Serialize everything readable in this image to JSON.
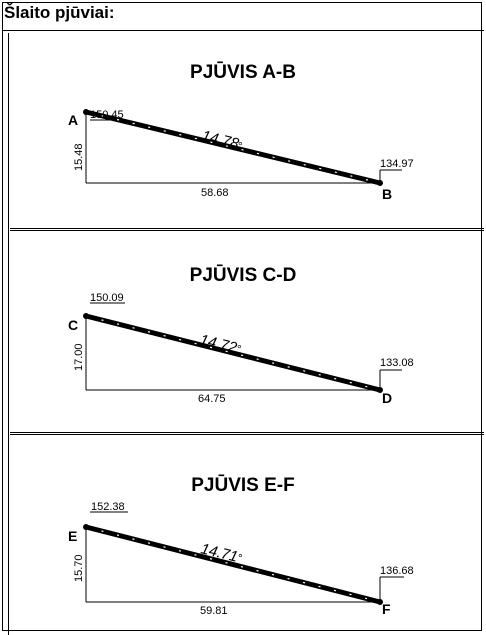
{
  "header": {
    "title": "Šlaito pjūviai:"
  },
  "sections": [
    {
      "title": "PJŪVIS A-B",
      "start_label": "A",
      "end_label": "B",
      "start_elev": "150.45",
      "end_elev": "134.97",
      "height": "15.48",
      "length": "58.68",
      "angle": "14.78"
    },
    {
      "title": "PJŪVIS C-D",
      "start_label": "C",
      "end_label": "D",
      "start_elev": "150.09",
      "end_elev": "133.08",
      "height": "17.00",
      "length": "64.75",
      "angle": "14.72"
    },
    {
      "title": "PJŪVIS E-F",
      "start_label": "E",
      "end_label": "F",
      "start_elev": "152.38",
      "end_elev": "136.68",
      "height": "15.70",
      "length": "59.81",
      "angle": "14.71"
    }
  ]
}
